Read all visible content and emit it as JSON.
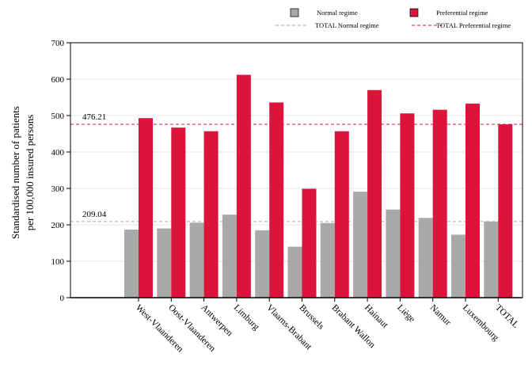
{
  "chart_data": {
    "type": "bar",
    "ylabel_lines": [
      "Standardised number of patients",
      "per 100,000 insured persons"
    ],
    "ylim": [
      0,
      700
    ],
    "yticks": [
      0,
      100,
      200,
      300,
      400,
      500,
      600,
      700
    ],
    "grid": true,
    "legend_position": "top-right",
    "categories": [
      "West-Vlaanderen",
      "Oost-Vlaanderen",
      "Antwerpen",
      "Limburg",
      "Vlaams-Brabant",
      "Brussels",
      "Brabant Wallon",
      "Hainaut",
      "Liège",
      "Namur",
      "Luxembourg",
      "TOTAL"
    ],
    "series": [
      {
        "name": "Normal regime",
        "color": "#a9a9a9",
        "values": [
          187,
          190,
          206,
          228,
          185,
          140,
          205,
          291,
          242,
          219,
          173,
          209
        ]
      },
      {
        "name": "Preferential regime",
        "color": "#dc143c",
        "values": [
          493,
          467,
          457,
          612,
          536,
          299,
          457,
          570,
          506,
          516,
          533,
          476
        ]
      }
    ],
    "reference_lines": [
      {
        "name": "TOTAL Normal regime",
        "value": 209.04,
        "label": "209.04",
        "color": "#a9a9a9"
      },
      {
        "name": "TOTAL Preferential regime",
        "value": 476.21,
        "label": "476.21",
        "color": "#dc143c"
      }
    ]
  }
}
